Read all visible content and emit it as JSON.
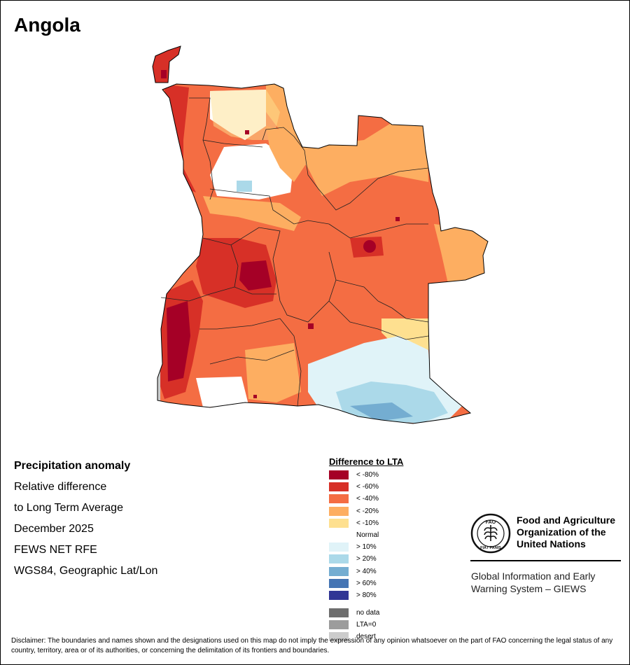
{
  "title": "Angola",
  "info": {
    "heading": "Precipitation anomaly",
    "line1": "Relative difference",
    "line2": "to Long Term Average",
    "period": "December 2025",
    "source": "FEWS NET RFE",
    "projection": "WGS84, Geographic Lat/Lon"
  },
  "legend": {
    "title": "Difference to LTA",
    "items": [
      {
        "label": "< -80%",
        "color": "#a50026"
      },
      {
        "label": "< -60%",
        "color": "#d73027"
      },
      {
        "label": "< -40%",
        "color": "#f46d43"
      },
      {
        "label": "< -20%",
        "color": "#fdae61"
      },
      {
        "label": "< -10%",
        "color": "#fee090"
      },
      {
        "label": "Normal",
        "color": "#ffffff"
      },
      {
        "label": "> 10%",
        "color": "#e0f3f8"
      },
      {
        "label": "> 20%",
        "color": "#abd9e9"
      },
      {
        "label": "> 40%",
        "color": "#74add1"
      },
      {
        "label": "> 60%",
        "color": "#4575b4"
      },
      {
        "label": "> 80%",
        "color": "#313695"
      }
    ],
    "extra": [
      {
        "label": "no data",
        "color": "#6e6e6e"
      },
      {
        "label": "LTA=0",
        "color": "#9c9c9c"
      },
      {
        "label": "desert",
        "color": "#cccccc"
      }
    ]
  },
  "fao": {
    "name": "Food and Agriculture Organization of the United Nations",
    "logo_letters": "FAO",
    "logo_motto": "FIAT PANIS",
    "giews": "Global Information and Early Warning System – GIEWS"
  },
  "disclaimer": "Disclaimer: The boundaries and names shown and the designations used on this map do not imply the expression of any opinion whatsoever on the part of FAO concerning the legal status of any country, territory, area or of its authorities, or concerning the delimitation of its frontiers and boundaries."
}
